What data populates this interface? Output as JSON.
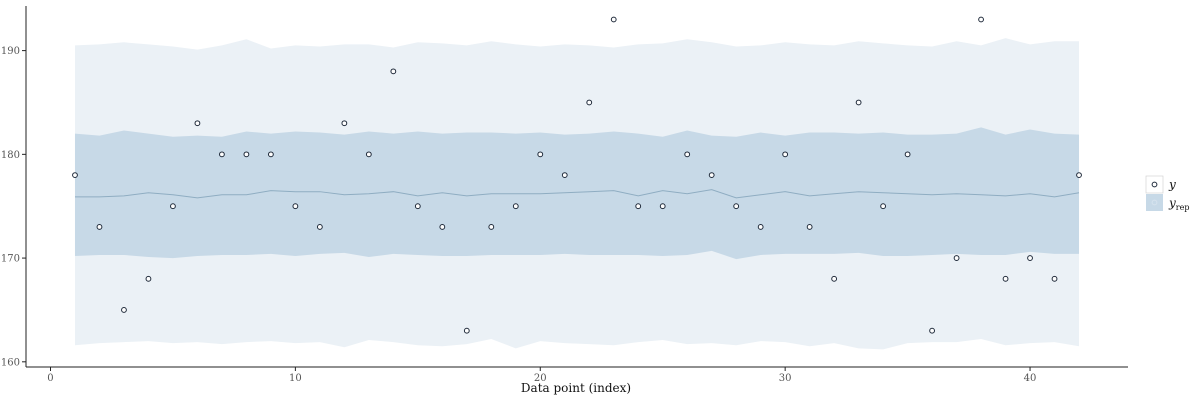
{
  "chart_data": {
    "type": "scatter",
    "title": "",
    "xlabel": "Data point (index)",
    "ylabel": "",
    "xlim": [
      -1,
      44
    ],
    "ylim": [
      159.5,
      194.3
    ],
    "x_ticks": [
      0,
      10,
      20,
      30,
      40
    ],
    "y_ticks": [
      160,
      170,
      180,
      190
    ],
    "grid": false,
    "legend_position": "right",
    "legend": {
      "y_label": "y",
      "yrep_label": "y",
      "yrep_subscript": "rep"
    },
    "colors": {
      "outer_band": "#ebf1f6",
      "inner_band": "#c7d9e7",
      "median_line": "#8fadc2",
      "point_stroke": "#1f2a3a"
    },
    "series": [
      {
        "name": "y",
        "kind": "points",
        "x": [
          1,
          2,
          3,
          4,
          5,
          6,
          7,
          8,
          9,
          10,
          11,
          12,
          13,
          14,
          15,
          16,
          17,
          18,
          19,
          20,
          21,
          22,
          23,
          24,
          25,
          26,
          27,
          28,
          29,
          30,
          31,
          32,
          33,
          34,
          35,
          36,
          37,
          38,
          39,
          40,
          41,
          42
        ],
        "values": [
          178,
          173,
          165,
          168,
          175,
          183,
          180,
          180,
          180,
          175,
          173,
          183,
          180,
          188,
          175,
          173,
          163,
          173,
          175,
          180,
          178,
          185,
          193,
          175,
          175,
          180,
          178,
          175,
          173,
          180,
          173,
          168,
          185,
          175,
          180,
          163,
          170,
          193,
          168,
          170,
          168,
          178
        ]
      },
      {
        "name": "y_rep",
        "kind": "interval",
        "x": [
          1,
          2,
          3,
          4,
          5,
          6,
          7,
          8,
          9,
          10,
          11,
          12,
          13,
          14,
          15,
          16,
          17,
          18,
          19,
          20,
          21,
          22,
          23,
          24,
          25,
          26,
          27,
          28,
          29,
          30,
          31,
          32,
          33,
          34,
          35,
          36,
          37,
          38,
          39,
          40,
          41,
          42
        ],
        "outer_low": [
          161.6,
          161.8,
          161.9,
          162.0,
          161.8,
          161.9,
          161.7,
          161.9,
          162.0,
          161.8,
          161.9,
          161.4,
          162.1,
          161.9,
          161.6,
          161.5,
          161.7,
          162.2,
          161.3,
          162.0,
          161.8,
          161.7,
          161.6,
          161.9,
          162.1,
          161.7,
          161.8,
          161.6,
          162.0,
          161.9,
          161.5,
          161.8,
          161.3,
          161.2,
          161.8,
          161.9,
          161.9,
          162.2,
          161.6,
          161.8,
          161.9,
          161.5
        ],
        "outer_high": [
          190.5,
          190.6,
          190.8,
          190.6,
          190.4,
          190.1,
          190.5,
          191.1,
          190.2,
          190.5,
          190.4,
          190.6,
          190.6,
          190.3,
          190.8,
          190.7,
          190.5,
          190.9,
          190.6,
          190.4,
          190.6,
          190.5,
          190.3,
          190.6,
          190.7,
          191.1,
          190.8,
          190.4,
          190.5,
          190.8,
          190.6,
          190.5,
          190.9,
          190.7,
          190.5,
          190.4,
          190.9,
          190.5,
          191.2,
          190.6,
          190.9,
          190.9
        ],
        "inner_low": [
          170.2,
          170.3,
          170.3,
          170.1,
          170.0,
          170.2,
          170.3,
          170.3,
          170.4,
          170.2,
          170.4,
          170.5,
          170.1,
          170.4,
          170.3,
          170.2,
          170.2,
          170.3,
          170.3,
          170.3,
          170.4,
          170.3,
          170.3,
          170.3,
          170.2,
          170.3,
          170.7,
          169.9,
          170.3,
          170.4,
          170.4,
          170.4,
          170.5,
          170.2,
          170.2,
          170.3,
          170.4,
          170.3,
          170.3,
          170.6,
          170.4,
          170.4
        ],
        "inner_high": [
          182.0,
          181.8,
          182.3,
          182.0,
          181.7,
          181.8,
          181.7,
          182.2,
          182.0,
          182.2,
          182.1,
          181.9,
          182.2,
          182.0,
          182.2,
          182.0,
          182.1,
          182.1,
          182.0,
          182.1,
          181.9,
          182.0,
          182.2,
          182.0,
          181.7,
          182.3,
          181.8,
          181.7,
          182.1,
          181.8,
          182.1,
          182.1,
          182.0,
          182.1,
          181.9,
          181.9,
          182.0,
          182.6,
          181.9,
          182.4,
          182.0,
          181.9
        ],
        "median": [
          175.9,
          175.9,
          176.0,
          176.3,
          176.1,
          175.8,
          176.1,
          176.1,
          176.5,
          176.4,
          176.4,
          176.1,
          176.2,
          176.4,
          176.0,
          176.3,
          176.0,
          176.2,
          176.2,
          176.2,
          176.3,
          176.4,
          176.5,
          176.0,
          176.5,
          176.2,
          176.6,
          175.8,
          176.1,
          176.4,
          176.0,
          176.2,
          176.4,
          176.3,
          176.2,
          176.1,
          176.2,
          176.1,
          176.0,
          176.2,
          175.9,
          176.3
        ]
      }
    ]
  }
}
